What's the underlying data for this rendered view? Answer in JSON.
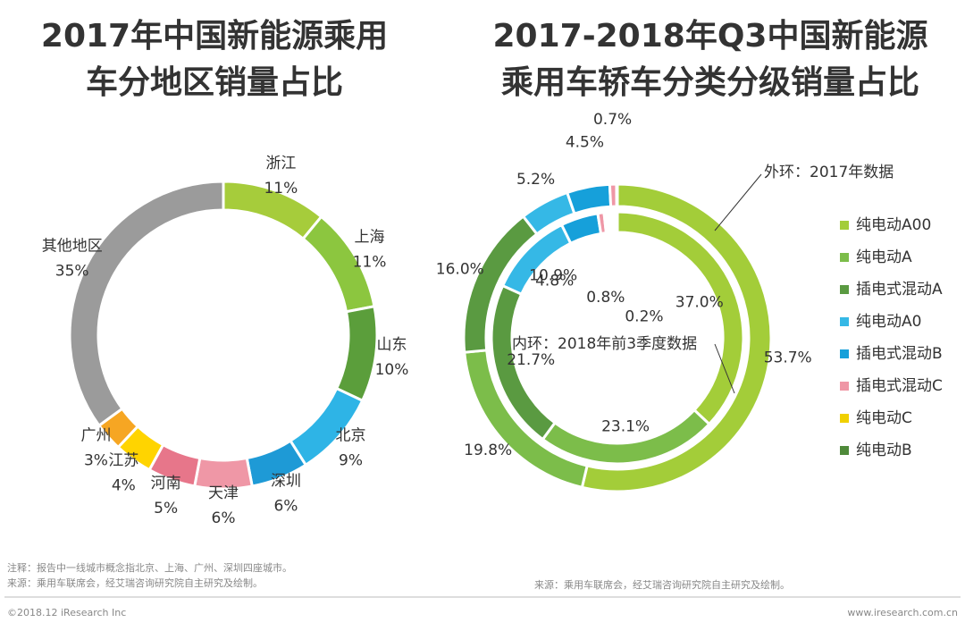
{
  "chart_data": [
    {
      "type": "donut",
      "title": [
        "2017年中国新能源乘用",
        "车分地区销量占比"
      ],
      "categories": [
        "浙江",
        "上海",
        "山东",
        "北京",
        "深圳",
        "天津",
        "河南",
        "江苏",
        "广州",
        "其他地区"
      ],
      "values": [
        11,
        11,
        10,
        9,
        6,
        6,
        5,
        4,
        3,
        35
      ],
      "value_labels": [
        "11%",
        "11%",
        "10%",
        "9%",
        "6%",
        "6%",
        "5%",
        "4%",
        "3%",
        "35%"
      ],
      "colors": [
        "#a6cc3b",
        "#8cc63f",
        "#5b9e3b",
        "#2eb4e6",
        "#1e9ad6",
        "#ef97a6",
        "#e7768a",
        "#ffd400",
        "#f6a623",
        "#9b9b9b"
      ]
    },
    {
      "type": "nested-donut",
      "title": [
        "2017-2018年Q3中国新能源",
        "乘用车轿车分类分级销量占比"
      ],
      "categories": [
        "纯电动A00",
        "纯电动A",
        "插电式混动A",
        "纯电动A0",
        "插电式混动B",
        "插电式混动C",
        "纯电动C",
        "纯电动B"
      ],
      "colors": [
        "#a3cd39",
        "#7cbd4a",
        "#5a9a41",
        "#35b8e6",
        "#16a0da",
        "#ef97a6",
        "#f0d000",
        "#4f8a3a"
      ],
      "series": [
        {
          "name": "外环：2017年数据",
          "values": [
            53.7,
            19.8,
            16.0,
            5.2,
            4.5,
            0.7,
            null,
            null
          ],
          "value_labels": [
            "53.7%",
            "19.8%",
            "16.0%",
            "5.2%",
            "4.5%",
            "0.7%",
            null,
            null
          ]
        },
        {
          "name": "内环：2018年前3季度数据",
          "values": [
            37.0,
            23.1,
            21.7,
            10.9,
            4.8,
            0.8,
            0.2,
            null
          ],
          "value_labels": [
            "37.0%",
            "23.1%",
            "21.7%",
            "10.9%",
            "4.8%",
            "0.8%",
            "0.2%",
            null
          ]
        }
      ],
      "legend": "right"
    }
  ],
  "notes": {
    "left": [
      "注释：报告中一线城市概念指北京、上海、广州、深圳四座城市。",
      "来源：乘用车联席会，经艾瑞咨询研究院自主研究及绘制。"
    ],
    "right": "来源：乘用车联席会，经艾瑞咨询研究院自主研究及绘制。",
    "copyright": "©2018.12 iResearch Inc",
    "website": "www.iresearch.com.cn"
  }
}
